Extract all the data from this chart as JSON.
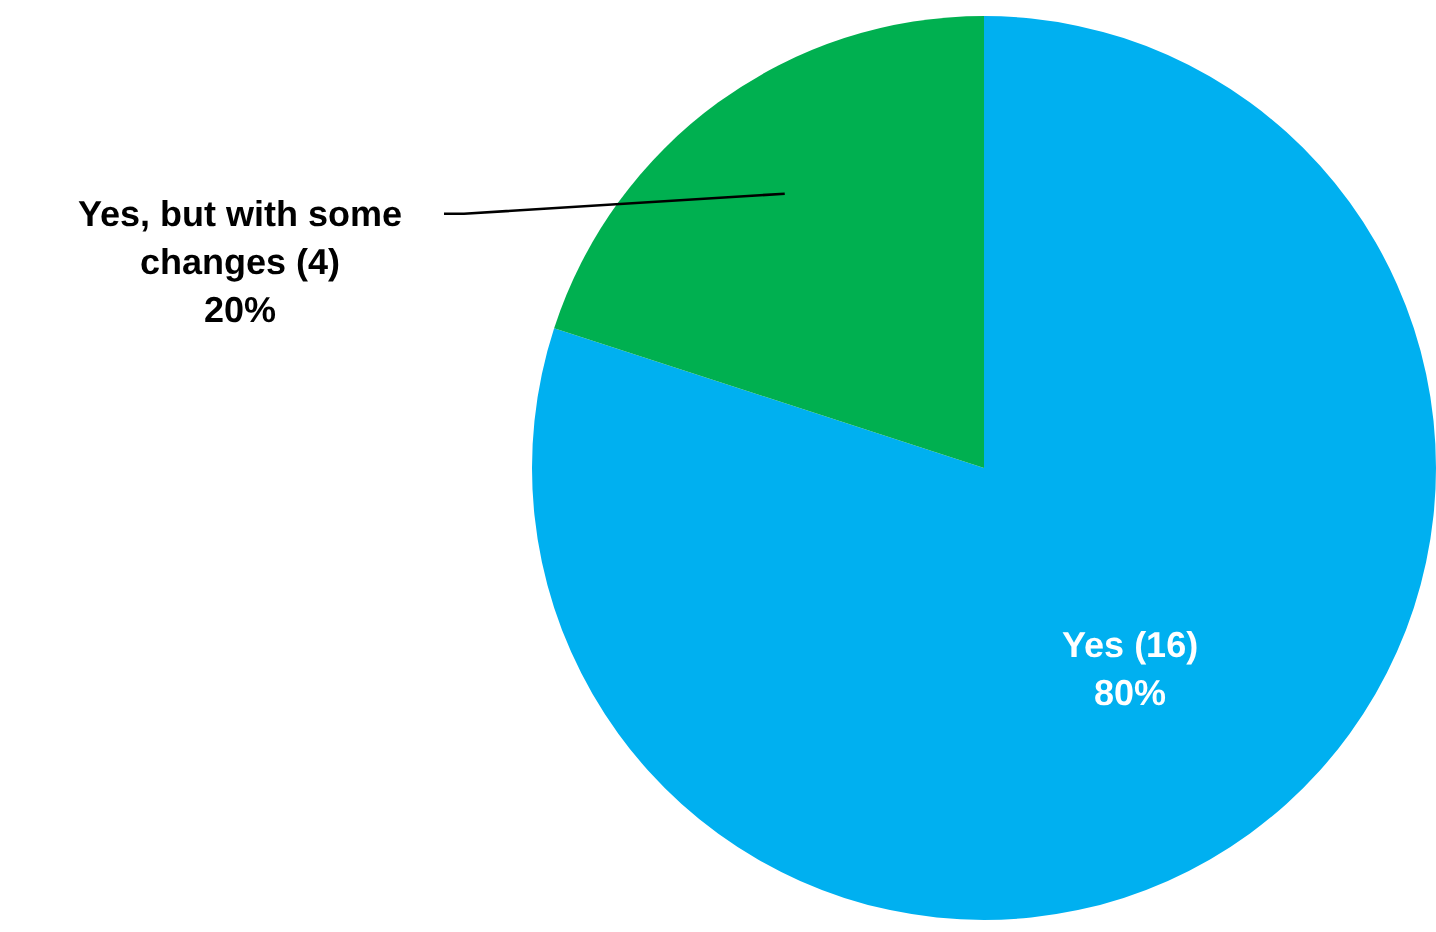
{
  "chart_data": {
    "type": "pie",
    "categories": [
      "Yes (16)",
      "Yes, but with some changes (4)"
    ],
    "values": [
      80,
      20
    ],
    "colors": [
      "#00b0f0",
      "#00b050"
    ],
    "value_labels": [
      "80%",
      "20%"
    ]
  }
}
